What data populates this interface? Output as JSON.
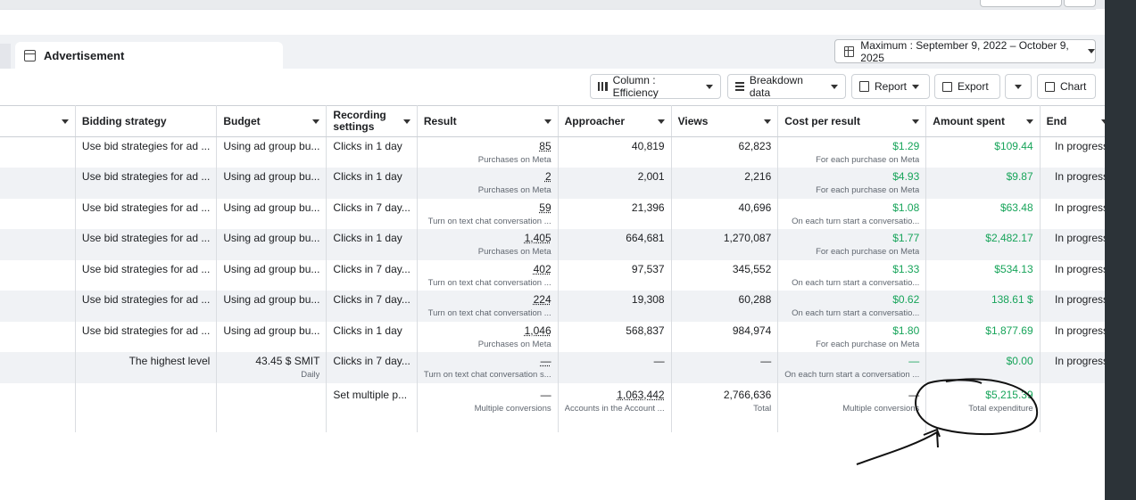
{
  "header": {
    "tab_label": "Advertisement",
    "date_range": "Maximum : September 9, 2022 – October 9, 2025"
  },
  "toolbar": {
    "column_label": "Column : Efficiency",
    "breakdown_label": "Breakdown data",
    "report_label": "Report",
    "export_label": "Export",
    "chart_label": "Chart"
  },
  "table": {
    "headers": {
      "bidding": "Bidding strategy",
      "budget": "Budget",
      "recording": "Recording settings",
      "result": "Result",
      "approacher": "Approacher",
      "views": "Views",
      "cpr": "Cost per result",
      "spent": "Amount spent",
      "end": "End"
    },
    "rows": [
      {
        "bidding": "Use bid strategies for ad ...",
        "budget": "Using ad group bu...",
        "recording": "Clicks in 1 day",
        "result": "85",
        "result_sub": "Purchases on Meta",
        "approacher": "40,819",
        "views": "62,823",
        "cpr": "$1.29",
        "cpr_sub": "For each purchase on Meta",
        "spent": "$109.44",
        "end": "In progress"
      },
      {
        "bidding": "Use bid strategies for ad ...",
        "budget": "Using ad group bu...",
        "recording": "Clicks in 1 day",
        "result": "2",
        "result_sub": "Purchases on Meta",
        "approacher": "2,001",
        "views": "2,216",
        "cpr": "$4.93",
        "cpr_sub": "For each purchase on Meta",
        "spent": "$9.87",
        "end": "In progress"
      },
      {
        "bidding": "Use bid strategies for ad ...",
        "budget": "Using ad group bu...",
        "recording": "Clicks in 7 day...",
        "result": "59",
        "result_sub": "Turn on text chat conversation ...",
        "approacher": "21,396",
        "views": "40,696",
        "cpr": "$1.08",
        "cpr_sub": "On each turn start a conversatio...",
        "spent": "$63.48",
        "end": "In progress"
      },
      {
        "bidding": "Use bid strategies for ad ...",
        "budget": "Using ad group bu...",
        "recording": "Clicks in 1 day",
        "result": "1,405",
        "result_sub": "Purchases on Meta",
        "approacher": "664,681",
        "views": "1,270,087",
        "cpr": "$1.77",
        "cpr_sub": "For each purchase on Meta",
        "spent": "$2,482.17",
        "end": "In progress"
      },
      {
        "bidding": "Use bid strategies for ad ...",
        "budget": "Using ad group bu...",
        "recording": "Clicks in 7 day...",
        "result": "402",
        "result_sub": "Turn on text chat conversation ...",
        "approacher": "97,537",
        "views": "345,552",
        "cpr": "$1.33",
        "cpr_sub": "On each turn start a conversatio...",
        "spent": "$534.13",
        "end": "In progress"
      },
      {
        "bidding": "Use bid strategies for ad ...",
        "budget": "Using ad group bu...",
        "recording": "Clicks in 7 day...",
        "result": "224",
        "result_sub": "Turn on text chat conversation ...",
        "approacher": "19,308",
        "views": "60,288",
        "cpr": "$0.62",
        "cpr_sub": "On each turn start a conversatio...",
        "spent": "138.61 $",
        "end": "In progress"
      },
      {
        "bidding": "Use bid strategies for ad ...",
        "budget": "Using ad group bu...",
        "recording": "Clicks in 1 day",
        "result": "1,046",
        "result_sub": "Purchases on Meta",
        "approacher": "568,837",
        "views": "984,974",
        "cpr": "$1.80",
        "cpr_sub": "For each purchase on Meta",
        "spent": "$1,877.69",
        "end": "In progress"
      },
      {
        "bidding": "The highest level",
        "budget": "43.45 $ SMIT",
        "budget_sub": "Daily",
        "recording": "Clicks in 7 day...",
        "result": "—",
        "result_sub": "Turn on text chat conversation s...",
        "approacher": "—",
        "views": "—",
        "cpr": "—",
        "cpr_sub": "On each turn start a conversation ...",
        "spent": "$0.00",
        "end": "In progress"
      }
    ],
    "total": {
      "recording": "Set multiple p...",
      "result": "—",
      "result_sub": "Multiple conversions",
      "approacher": "1,063,442",
      "approacher_sub": "Accounts in the Account ...",
      "views": "2,766,636",
      "views_sub": "Total",
      "cpr": "—",
      "cpr_sub": "Multiple conversions",
      "spent": "$5,215.39",
      "spent_sub": "Total expenditure"
    }
  },
  "colors": {
    "accent_green": "#17a45a",
    "annotation_ink": "#111111"
  }
}
